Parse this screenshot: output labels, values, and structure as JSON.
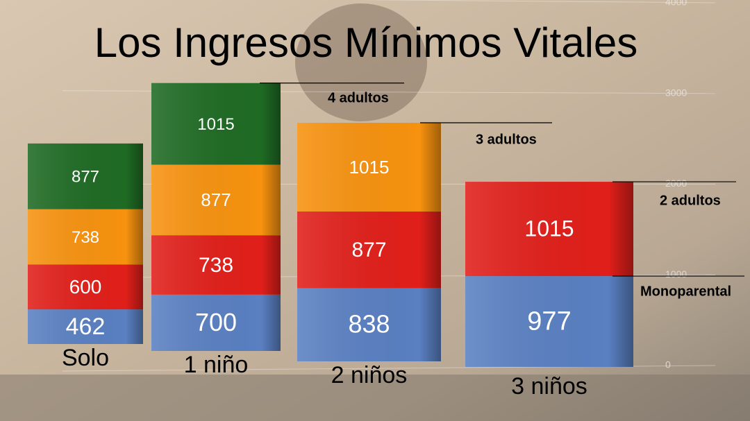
{
  "chart_data": {
    "type": "bar",
    "title": "Los Ingresos Mínimos Vitales",
    "categories": [
      "Solo",
      "1 niño",
      "2 niños",
      "3 niños"
    ],
    "series": [
      {
        "name": "Monoparental",
        "color": "#5a80c2",
        "values": [
          462,
          700,
          838,
          977
        ]
      },
      {
        "name": "2 adultos",
        "color": "#e11f1a",
        "values": [
          600,
          738,
          877,
          1015
        ]
      },
      {
        "name": "3 adultos",
        "color": "#f7920f",
        "values": [
          738,
          877,
          1015,
          null
        ]
      },
      {
        "name": "4 adultos",
        "color": "#1f6b24",
        "values": [
          877,
          1015,
          null,
          null
        ]
      }
    ],
    "ylim": [
      0,
      4000
    ],
    "yticks": [
      0,
      1000,
      2000,
      3000,
      4000
    ],
    "grid": true
  }
}
